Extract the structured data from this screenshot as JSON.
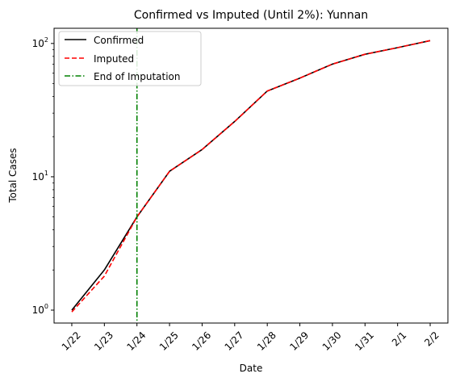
{
  "chart_data": {
    "type": "line",
    "title": "Confirmed vs Imputed (Until 2%): Yunnan",
    "xlabel": "Date",
    "ylabel": "Total Cases",
    "y_scale": "log",
    "ylim": [
      0.8,
      130
    ],
    "y_ticks": [
      1,
      10,
      100
    ],
    "y_tick_labels": [
      {
        "base": "10",
        "exp": "0"
      },
      {
        "base": "10",
        "exp": "1"
      },
      {
        "base": "10",
        "exp": "2"
      }
    ],
    "categories": [
      "1/22",
      "1/23",
      "1/24",
      "1/25",
      "1/26",
      "1/27",
      "1/28",
      "1/29",
      "1/30",
      "1/31",
      "2/1",
      "2/2"
    ],
    "series": [
      {
        "name": "Confirmed",
        "color": "#000000",
        "style": "solid",
        "values": [
          1,
          2,
          5,
          11,
          16,
          26,
          44,
          55,
          70,
          83,
          93,
          105
        ]
      },
      {
        "name": "Imputed",
        "color": "#ff0000",
        "style": "dashed",
        "values": [
          0.97,
          1.8,
          5,
          11,
          16,
          26,
          44,
          55,
          70,
          83,
          93,
          105
        ]
      }
    ],
    "vline": {
      "name": "End of Imputation",
      "x": "1/24",
      "color": "#008000",
      "style": "dashdot"
    },
    "legend_position": "top-left",
    "grid": false
  }
}
